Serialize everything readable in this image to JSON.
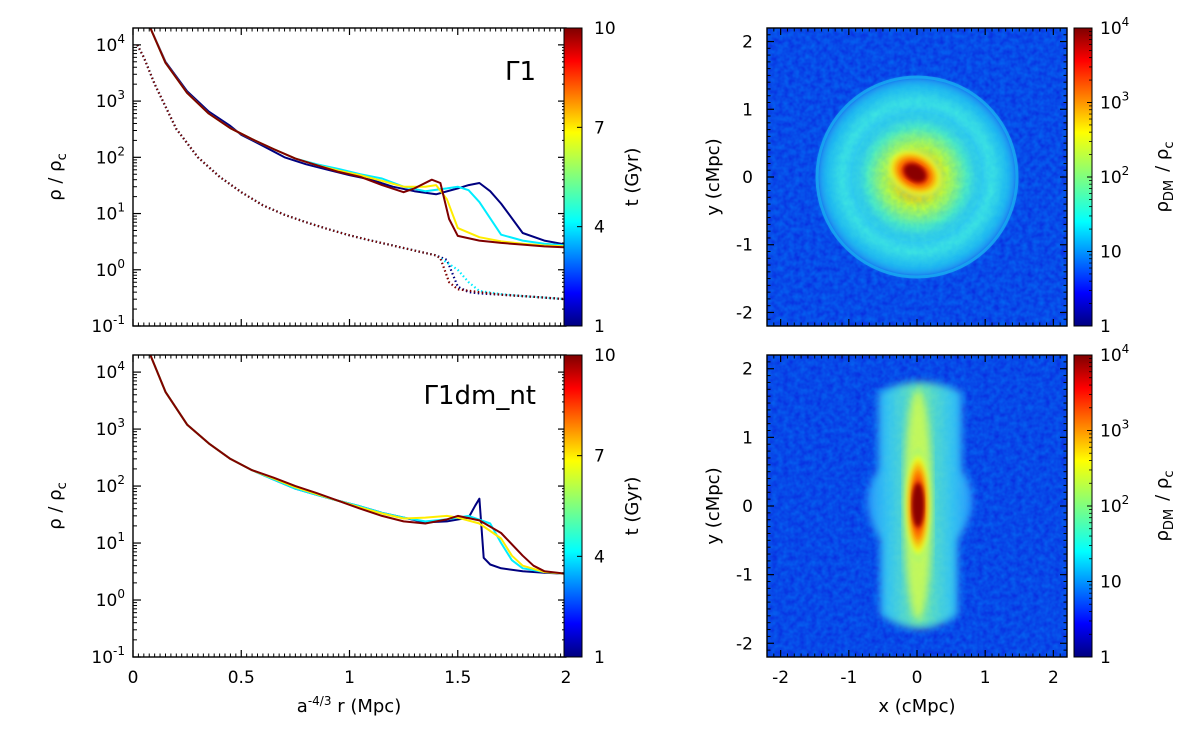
{
  "chart_data": [
    {
      "id": "top_left",
      "type": "line",
      "title": "Γ1",
      "ylabel": "ρ / ρ",
      "ylabel_sub": "c",
      "xlabel": "",
      "xlim": [
        0,
        2
      ],
      "ylim_log10": [
        -1,
        4.3
      ],
      "xticks": [
        0,
        0.5,
        1,
        1.5,
        2
      ],
      "xtick_labels": [
        "",
        "",
        "",
        "",
        ""
      ],
      "yticks": [
        {
          "base": "10",
          "exp": "-1",
          "log": -1
        },
        {
          "base": "10",
          "exp": "0",
          "log": 0
        },
        {
          "base": "10",
          "exp": "1",
          "log": 1
        },
        {
          "base": "10",
          "exp": "2",
          "log": 2
        },
        {
          "base": "10",
          "exp": "3",
          "log": 3
        },
        {
          "base": "10",
          "exp": "4",
          "log": 4
        }
      ],
      "colorbar": {
        "label": "t (Gyr)",
        "min": 1,
        "max": 10,
        "ticks": [
          "1",
          "4",
          "7",
          "10"
        ]
      },
      "series": [
        {
          "name": "gas t=1 Gyr",
          "t": 1,
          "style": "solid",
          "x": [
            0.08,
            0.15,
            0.25,
            0.35,
            0.45,
            0.5,
            0.6,
            0.7,
            0.8,
            0.9,
            1.0,
            1.1,
            1.2,
            1.3,
            1.4,
            1.5,
            1.55,
            1.6,
            1.65,
            1.7,
            1.8,
            1.9,
            2.0
          ],
          "y": [
            20000,
            5000,
            1500,
            650,
            360,
            250,
            160,
            100,
            75,
            60,
            48,
            40,
            30,
            25,
            22,
            28,
            32,
            35,
            25,
            15,
            4.5,
            3.3,
            2.8
          ]
        },
        {
          "name": "gas t=4 Gyr",
          "t": 4,
          "style": "solid",
          "x": [
            0.08,
            0.15,
            0.25,
            0.35,
            0.45,
            0.55,
            0.65,
            0.75,
            0.85,
            0.95,
            1.05,
            1.15,
            1.25,
            1.35,
            1.45,
            1.5,
            1.55,
            1.6,
            1.7,
            1.8,
            1.9,
            2.0
          ],
          "y": [
            20000,
            4800,
            1400,
            600,
            330,
            210,
            140,
            95,
            75,
            62,
            50,
            42,
            30,
            25,
            28,
            30,
            26,
            16,
            4.2,
            3.3,
            2.9,
            2.7
          ]
        },
        {
          "name": "gas t=7 Gyr",
          "t": 7,
          "style": "solid",
          "x": [
            0.08,
            0.15,
            0.25,
            0.35,
            0.45,
            0.55,
            0.65,
            0.75,
            0.85,
            0.95,
            1.05,
            1.15,
            1.25,
            1.35,
            1.4,
            1.45,
            1.5,
            1.6,
            1.7,
            1.8,
            1.9,
            2.0
          ],
          "y": [
            20000,
            4800,
            1400,
            600,
            330,
            210,
            140,
            95,
            72,
            58,
            48,
            38,
            30,
            30,
            32,
            18,
            5.5,
            3.8,
            3.2,
            2.9,
            2.7,
            2.6
          ]
        },
        {
          "name": "gas t=10 Gyr",
          "t": 10,
          "style": "solid",
          "x": [
            0.08,
            0.15,
            0.25,
            0.35,
            0.45,
            0.55,
            0.65,
            0.75,
            0.85,
            0.95,
            1.05,
            1.15,
            1.25,
            1.3,
            1.38,
            1.42,
            1.46,
            1.5,
            1.6,
            1.7,
            1.8,
            1.9,
            2.0
          ],
          "y": [
            20000,
            4800,
            1400,
            600,
            330,
            210,
            140,
            95,
            72,
            55,
            45,
            32,
            24,
            28,
            40,
            35,
            8,
            4,
            3.3,
            3.0,
            2.8,
            2.6,
            2.5
          ]
        },
        {
          "name": "DM t=1 Gyr",
          "t": 1,
          "style": "dotted",
          "x": [
            0.02,
            0.05,
            0.1,
            0.2,
            0.3,
            0.4,
            0.5,
            0.6,
            0.7,
            0.8,
            0.9,
            1.0,
            1.1,
            1.2,
            1.3,
            1.4,
            1.45,
            1.5,
            1.55,
            1.6,
            1.7,
            1.8,
            1.9,
            2.0
          ],
          "y": [
            10000,
            6000,
            2000,
            320,
            100,
            45,
            24,
            14,
            9.5,
            7,
            5.3,
            4.1,
            3.3,
            2.7,
            2.2,
            1.8,
            1.5,
            0.5,
            0.4,
            0.38,
            0.36,
            0.34,
            0.32,
            0.3
          ]
        },
        {
          "name": "DM t=4 Gyr",
          "t": 4,
          "style": "dotted",
          "x": [
            0.02,
            0.05,
            0.1,
            0.2,
            0.3,
            0.4,
            0.5,
            0.6,
            0.7,
            0.8,
            0.9,
            1.0,
            1.1,
            1.2,
            1.3,
            1.4,
            1.5,
            1.55,
            1.6,
            1.7,
            1.8,
            1.9,
            2.0
          ],
          "y": [
            10000,
            6000,
            2000,
            320,
            100,
            45,
            24,
            14,
            9.5,
            7,
            5.3,
            4.1,
            3.3,
            2.7,
            2.2,
            1.8,
            1.0,
            0.6,
            0.42,
            0.37,
            0.34,
            0.32,
            0.3
          ]
        },
        {
          "name": "DM t=10 Gyr",
          "t": 10,
          "style": "dotted",
          "x": [
            0.02,
            0.05,
            0.1,
            0.2,
            0.3,
            0.4,
            0.5,
            0.6,
            0.7,
            0.8,
            0.9,
            1.0,
            1.1,
            1.2,
            1.3,
            1.4,
            1.42,
            1.46,
            1.5,
            1.6,
            1.7,
            1.8,
            1.9,
            2.0
          ],
          "y": [
            10000,
            6000,
            2000,
            320,
            100,
            45,
            24,
            14,
            9.5,
            7,
            5.3,
            4.1,
            3.3,
            2.7,
            2.2,
            1.8,
            1.6,
            0.6,
            0.45,
            0.4,
            0.36,
            0.34,
            0.32,
            0.3
          ]
        }
      ]
    },
    {
      "id": "bottom_left",
      "type": "line",
      "title": "Γ1dm_nt",
      "ylabel": "ρ / ρ",
      "ylabel_sub": "c",
      "xlabel": "a",
      "xlabel_sup": "-4/3",
      "xlabel_rest": " r (Mpc)",
      "xlim": [
        0,
        2
      ],
      "ylim_log10": [
        -1,
        4.3
      ],
      "xticks": [
        0,
        0.5,
        1,
        1.5,
        2
      ],
      "xtick_labels": [
        "0",
        "0.5",
        "1",
        "1.5",
        "2"
      ],
      "yticks": [
        {
          "base": "10",
          "exp": "-1",
          "log": -1
        },
        {
          "base": "10",
          "exp": "0",
          "log": 0
        },
        {
          "base": "10",
          "exp": "1",
          "log": 1
        },
        {
          "base": "10",
          "exp": "2",
          "log": 2
        },
        {
          "base": "10",
          "exp": "3",
          "log": 3
        },
        {
          "base": "10",
          "exp": "4",
          "log": 4
        }
      ],
      "colorbar": {
        "label": "t (Gyr)",
        "min": 1,
        "max": 10,
        "ticks": [
          "1",
          "4",
          "7",
          "10"
        ]
      },
      "series": [
        {
          "name": "gas t=1 Gyr",
          "t": 1,
          "style": "solid",
          "x": [
            0.08,
            0.15,
            0.25,
            0.35,
            0.45,
            0.55,
            0.65,
            0.75,
            0.85,
            0.95,
            1.05,
            1.15,
            1.25,
            1.35,
            1.45,
            1.55,
            1.58,
            1.6,
            1.62,
            1.65,
            1.7,
            1.8,
            1.9,
            2.0
          ],
          "y": [
            20000,
            4500,
            1200,
            560,
            300,
            190,
            130,
            90,
            70,
            55,
            44,
            34,
            28,
            23,
            24,
            28,
            45,
            60,
            5.5,
            4.2,
            3.6,
            3.2,
            3.0,
            2.9
          ]
        },
        {
          "name": "gas t=4 Gyr",
          "t": 4,
          "style": "solid",
          "x": [
            0.08,
            0.15,
            0.25,
            0.35,
            0.45,
            0.55,
            0.65,
            0.75,
            0.85,
            0.95,
            1.05,
            1.15,
            1.25,
            1.35,
            1.45,
            1.55,
            1.65,
            1.7,
            1.75,
            1.8,
            1.9,
            2.0
          ],
          "y": [
            20000,
            4500,
            1200,
            560,
            300,
            190,
            130,
            90,
            70,
            55,
            44,
            34,
            28,
            24,
            26,
            30,
            22,
            10,
            5,
            3.6,
            3.1,
            2.9
          ]
        },
        {
          "name": "gas t=7 Gyr",
          "t": 7,
          "style": "solid",
          "x": [
            0.08,
            0.15,
            0.25,
            0.35,
            0.45,
            0.55,
            0.65,
            0.75,
            0.85,
            0.95,
            1.05,
            1.15,
            1.25,
            1.35,
            1.45,
            1.5,
            1.6,
            1.7,
            1.75,
            1.8,
            1.9,
            2.0
          ],
          "y": [
            20000,
            4500,
            1200,
            560,
            300,
            190,
            135,
            95,
            72,
            55,
            42,
            33,
            27,
            28,
            30,
            28,
            22,
            12,
            6,
            4,
            3.1,
            2.9
          ]
        },
        {
          "name": "gas t=10 Gyr",
          "t": 10,
          "style": "solid",
          "x": [
            0.08,
            0.15,
            0.25,
            0.35,
            0.45,
            0.55,
            0.65,
            0.75,
            0.85,
            0.95,
            1.05,
            1.15,
            1.25,
            1.35,
            1.45,
            1.5,
            1.6,
            1.7,
            1.8,
            1.85,
            1.9,
            2.0
          ],
          "y": [
            20000,
            4500,
            1200,
            560,
            300,
            190,
            140,
            100,
            75,
            55,
            40,
            30,
            24,
            22,
            26,
            30,
            25,
            15,
            6,
            4,
            3.2,
            2.9
          ]
        }
      ]
    },
    {
      "id": "top_right",
      "type": "heatmap",
      "xlabel": "",
      "ylabel": "y (cMpc)",
      "xlim": [
        -2.2,
        2.2
      ],
      "ylim": [
        -2.2,
        2.2
      ],
      "xticks": [
        -2,
        -1,
        0,
        1,
        2
      ],
      "xtick_labels": [
        "",
        "",
        "",
        "",
        ""
      ],
      "yticks": [
        -2,
        -1,
        0,
        1,
        2
      ],
      "ytick_labels": [
        "-2",
        "-1",
        "0",
        "1",
        "2"
      ],
      "colorbar": {
        "label": "ρ",
        "label_sub": "DM",
        "label_rest": "/ ρ",
        "label_rest_sub": "c",
        "scale": "log",
        "min": 1,
        "max": 10000,
        "ticks": [
          {
            "base": "1",
            "exp": ""
          },
          {
            "base": "10",
            "exp": ""
          },
          {
            "base": "10",
            "exp": "2"
          },
          {
            "base": "10",
            "exp": "3"
          },
          {
            "base": "10",
            "exp": "4"
          }
        ]
      },
      "structure": "round shell of radius ~1.5 cMpc around dense core"
    },
    {
      "id": "bottom_right",
      "type": "heatmap",
      "xlabel": "x (cMpc)",
      "ylabel": "y (cMpc)",
      "xlim": [
        -2.2,
        2.2
      ],
      "ylim": [
        -2.2,
        2.2
      ],
      "xticks": [
        -2,
        -1,
        0,
        1,
        2
      ],
      "xtick_labels": [
        "-2",
        "-1",
        "0",
        "1",
        "2"
      ],
      "yticks": [
        -2,
        -1,
        0,
        1,
        2
      ],
      "ytick_labels": [
        "-2",
        "-1",
        "0",
        "1",
        "2"
      ],
      "colorbar": {
        "label": "ρ",
        "label_sub": "DM",
        "label_rest": "/ ρ",
        "label_rest_sub": "c",
        "scale": "log",
        "min": 1,
        "max": 10000,
        "ticks": [
          {
            "base": "1",
            "exp": ""
          },
          {
            "base": "10",
            "exp": ""
          },
          {
            "base": "10",
            "exp": "2"
          },
          {
            "base": "10",
            "exp": "3"
          },
          {
            "base": "10",
            "exp": "4"
          }
        ]
      },
      "structure": "vertical elongated filament-like distribution along y axis"
    }
  ]
}
